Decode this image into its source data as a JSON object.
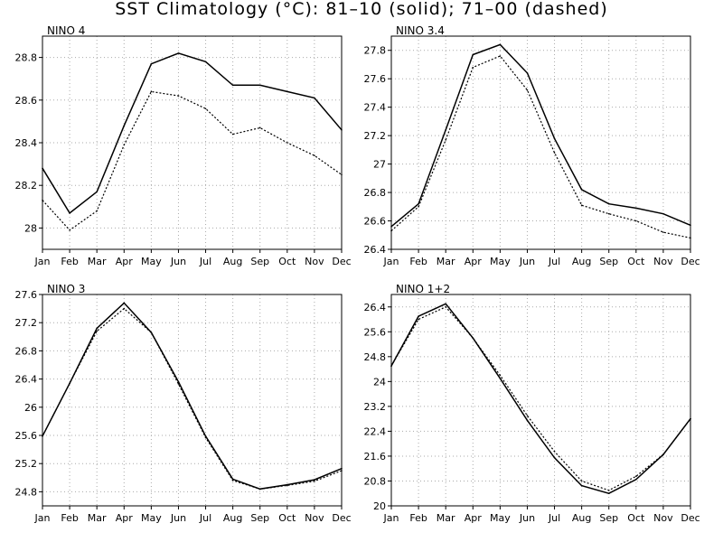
{
  "title": "SST Climatology (°C): 81–10 (solid); 71–00 (dashed)",
  "colors": {
    "lines": "#000000",
    "grid": "#aaaaaa",
    "frame": "#000000"
  },
  "chart_data": [
    {
      "type": "line",
      "panel_label": "NINO 4",
      "categories": [
        "Jan",
        "Feb",
        "Mar",
        "Apr",
        "May",
        "Jun",
        "Jul",
        "Aug",
        "Sep",
        "Oct",
        "Nov",
        "Dec"
      ],
      "series": [
        {
          "name": "81-10",
          "style": "solid",
          "values": [
            28.28,
            28.07,
            28.17,
            28.48,
            28.77,
            28.82,
            28.78,
            28.67,
            28.67,
            28.64,
            28.61,
            28.46
          ]
        },
        {
          "name": "71-00",
          "style": "dashed",
          "values": [
            28.13,
            27.99,
            28.08,
            28.39,
            28.64,
            28.62,
            28.56,
            28.44,
            28.47,
            28.4,
            28.34,
            28.25
          ]
        }
      ],
      "ylim": [
        27.9,
        28.9
      ],
      "yticks": [
        "28",
        "28.2",
        "28.4",
        "28.6",
        "28.8"
      ],
      "grid": true
    },
    {
      "type": "line",
      "panel_label": "NINO 3.4",
      "categories": [
        "Jan",
        "Feb",
        "Mar",
        "Apr",
        "May",
        "Jun",
        "Jul",
        "Aug",
        "Sep",
        "Oct",
        "Nov",
        "Dec"
      ],
      "series": [
        {
          "name": "81-10",
          "style": "solid",
          "values": [
            26.56,
            26.72,
            27.24,
            27.77,
            27.84,
            27.64,
            27.18,
            26.82,
            26.72,
            26.69,
            26.65,
            26.57
          ]
        },
        {
          "name": "71-00",
          "style": "dashed",
          "values": [
            26.53,
            26.7,
            27.17,
            27.68,
            27.76,
            27.52,
            27.08,
            26.71,
            26.65,
            26.6,
            26.52,
            26.48
          ]
        }
      ],
      "ylim": [
        26.4,
        27.9
      ],
      "yticks": [
        "26.4",
        "26.6",
        "26.8",
        "27",
        "27.2",
        "27.4",
        "27.6",
        "27.8"
      ],
      "grid": true
    },
    {
      "type": "line",
      "panel_label": "NINO 3",
      "categories": [
        "Jan",
        "Feb",
        "Mar",
        "Apr",
        "May",
        "Jun",
        "Jul",
        "Aug",
        "Sep",
        "Oct",
        "Nov",
        "Dec"
      ],
      "series": [
        {
          "name": "81-10",
          "style": "solid",
          "values": [
            25.59,
            26.34,
            27.12,
            27.48,
            27.06,
            26.36,
            25.59,
            24.98,
            24.84,
            24.9,
            24.97,
            25.13
          ]
        },
        {
          "name": "71-00",
          "style": "dashed",
          "values": [
            25.59,
            26.34,
            27.08,
            27.4,
            27.06,
            26.33,
            25.57,
            24.96,
            24.84,
            24.89,
            24.95,
            25.1
          ]
        }
      ],
      "ylim": [
        24.6,
        27.6
      ],
      "yticks": [
        "24.8",
        "25.2",
        "25.6",
        "26",
        "26.4",
        "26.8",
        "27.2",
        "27.6"
      ],
      "grid": true
    },
    {
      "type": "line",
      "panel_label": "NINO 1+2",
      "categories": [
        "Jan",
        "Feb",
        "Mar",
        "Apr",
        "May",
        "Jun",
        "Jul",
        "Aug",
        "Sep",
        "Oct",
        "Nov",
        "Dec"
      ],
      "series": [
        {
          "name": "81-10",
          "style": "solid",
          "values": [
            24.5,
            26.1,
            26.5,
            25.4,
            24.1,
            22.75,
            21.55,
            20.65,
            20.4,
            20.85,
            21.65,
            22.8
          ]
        },
        {
          "name": "71-00",
          "style": "dashed",
          "values": [
            24.5,
            26.0,
            26.4,
            25.4,
            24.2,
            22.9,
            21.75,
            20.8,
            20.5,
            20.95,
            21.65,
            22.8
          ]
        }
      ],
      "ylim": [
        20,
        26.8
      ],
      "yticks": [
        "20",
        "20.8",
        "21.6",
        "22.4",
        "23.2",
        "24",
        "24.8",
        "25.6",
        "26.4"
      ],
      "grid": true
    }
  ]
}
